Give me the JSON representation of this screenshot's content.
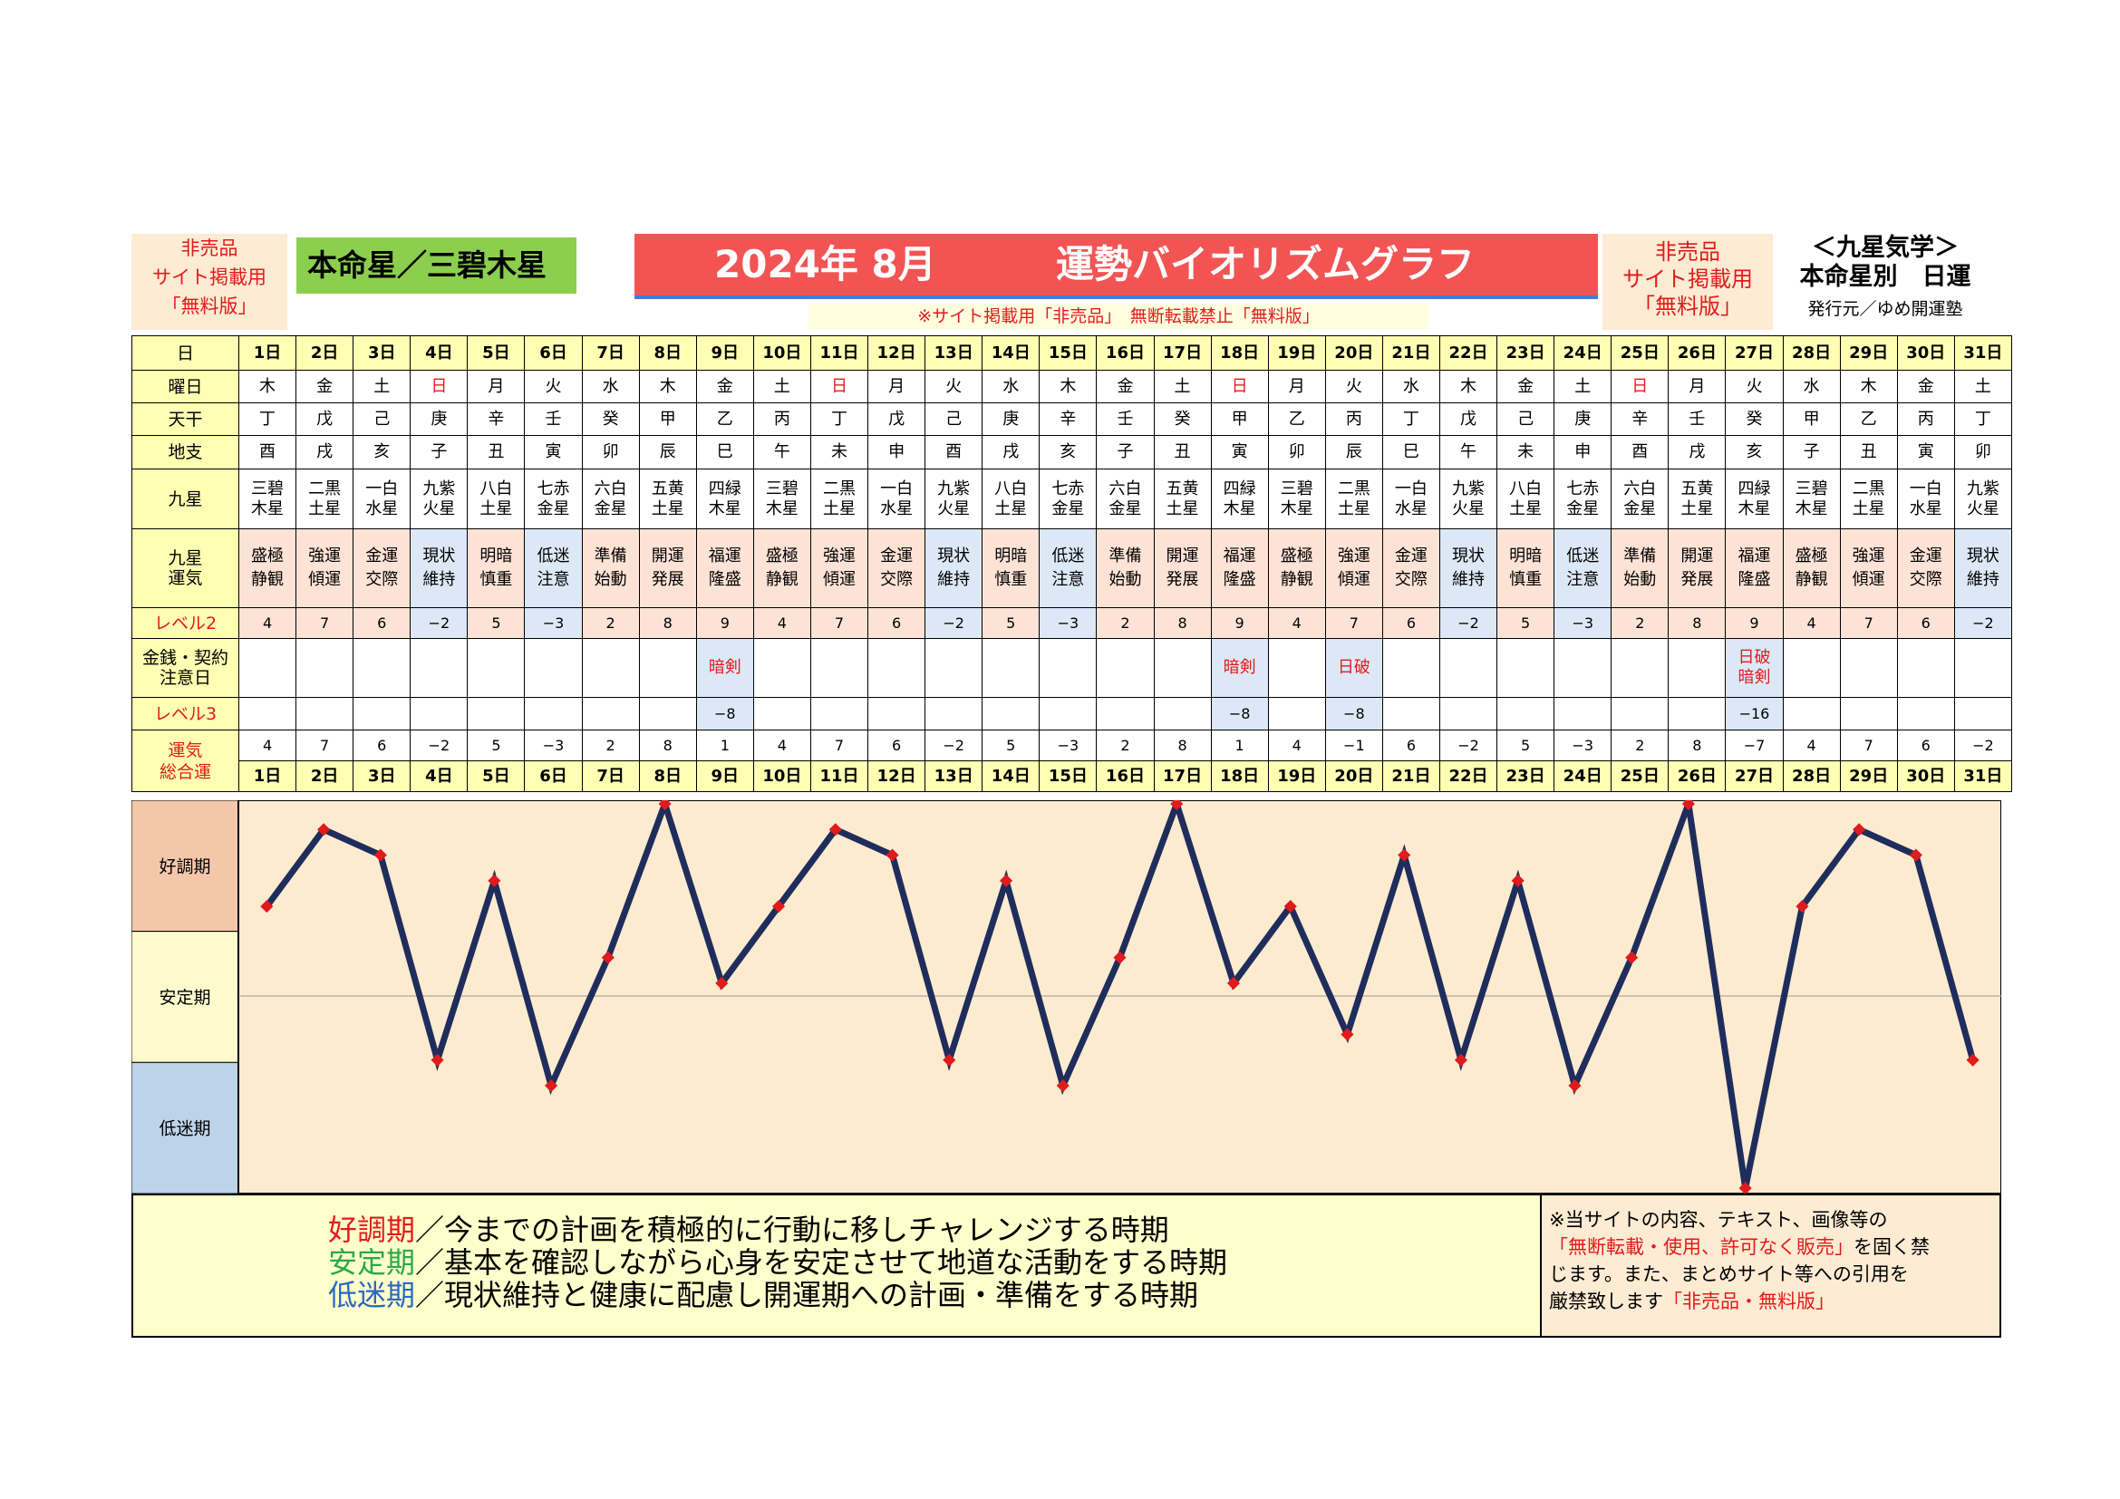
{
  "header": {
    "nonsale_left": [
      "非売品",
      "サイト掲載用",
      "「無料版」"
    ],
    "honmei": "本命星／三碧木星",
    "title_year": "2024年 8月",
    "title_main": "運勢バイオリズムグラフ",
    "notice": "※サイト掲載用「非売品」　無断転載禁止「無料版」",
    "nonsale_right": [
      "非売品",
      "サイト掲載用",
      "「無料版」"
    ],
    "kyusei_title": "＜九星気学＞",
    "kyusei_sub": "本命星別　日運",
    "publisher": "発行元／ゆめ開運塾"
  },
  "row_labels": {
    "day": "日",
    "weekday": "曜日",
    "tenkan": "天干",
    "chishi": "地支",
    "kyusei": "九星",
    "unki": "九星\n運気",
    "level2": "レベル2",
    "kinsen": "金銭・契約\n注意日",
    "level3": "レベル3",
    "total": "運気\n総合運"
  },
  "days": [
    "1日",
    "2日",
    "3日",
    "4日",
    "5日",
    "6日",
    "7日",
    "8日",
    "9日",
    "10日",
    "11日",
    "12日",
    "13日",
    "14日",
    "15日",
    "16日",
    "17日",
    "18日",
    "19日",
    "20日",
    "21日",
    "22日",
    "23日",
    "24日",
    "25日",
    "26日",
    "27日",
    "28日",
    "29日",
    "30日",
    "31日"
  ],
  "weekdays": [
    "木",
    "金",
    "土",
    "日",
    "月",
    "火",
    "水",
    "木",
    "金",
    "土",
    "日",
    "月",
    "火",
    "水",
    "木",
    "金",
    "土",
    "日",
    "月",
    "火",
    "水",
    "木",
    "金",
    "土",
    "日",
    "月",
    "火",
    "水",
    "木",
    "金",
    "土"
  ],
  "tenkan": [
    "丁",
    "戊",
    "己",
    "庚",
    "辛",
    "壬",
    "癸",
    "甲",
    "乙",
    "丙",
    "丁",
    "戊",
    "己",
    "庚",
    "辛",
    "壬",
    "癸",
    "甲",
    "乙",
    "丙",
    "丁",
    "戊",
    "己",
    "庚",
    "辛",
    "壬",
    "癸",
    "甲",
    "乙",
    "丙",
    "丁"
  ],
  "chishi": [
    "酉",
    "戌",
    "亥",
    "子",
    "丑",
    "寅",
    "卯",
    "辰",
    "巳",
    "午",
    "未",
    "申",
    "酉",
    "戌",
    "亥",
    "子",
    "丑",
    "寅",
    "卯",
    "辰",
    "巳",
    "午",
    "未",
    "申",
    "酉",
    "戌",
    "亥",
    "子",
    "丑",
    "寅",
    "卯"
  ],
  "kyusei_stars": [
    [
      "三碧",
      "木星"
    ],
    [
      "二黒",
      "土星"
    ],
    [
      "一白",
      "水星"
    ],
    [
      "九紫",
      "火星"
    ],
    [
      "八白",
      "土星"
    ],
    [
      "七赤",
      "金星"
    ],
    [
      "六白",
      "金星"
    ],
    [
      "五黄",
      "土星"
    ],
    [
      "四緑",
      "木星"
    ],
    [
      "三碧",
      "木星"
    ],
    [
      "二黒",
      "土星"
    ],
    [
      "一白",
      "水星"
    ],
    [
      "九紫",
      "火星"
    ],
    [
      "八白",
      "土星"
    ],
    [
      "七赤",
      "金星"
    ],
    [
      "六白",
      "金星"
    ],
    [
      "五黄",
      "土星"
    ],
    [
      "四緑",
      "木星"
    ],
    [
      "三碧",
      "木星"
    ],
    [
      "二黒",
      "土星"
    ],
    [
      "一白",
      "水星"
    ],
    [
      "九紫",
      "火星"
    ],
    [
      "八白",
      "土星"
    ],
    [
      "七赤",
      "金星"
    ],
    [
      "六白",
      "金星"
    ],
    [
      "五黄",
      "土星"
    ],
    [
      "四緑",
      "木星"
    ],
    [
      "三碧",
      "木星"
    ],
    [
      "二黒",
      "土星"
    ],
    [
      "一白",
      "水星"
    ],
    [
      "九紫",
      "火星"
    ]
  ],
  "unki": [
    [
      "盛極",
      "静観"
    ],
    [
      "強運",
      "傾運"
    ],
    [
      "金運",
      "交際"
    ],
    [
      "現状",
      "維持"
    ],
    [
      "明暗",
      "慎重"
    ],
    [
      "低迷",
      "注意"
    ],
    [
      "準備",
      "始動"
    ],
    [
      "開運",
      "発展"
    ],
    [
      "福運",
      "隆盛"
    ],
    [
      "盛極",
      "静観"
    ],
    [
      "強運",
      "傾運"
    ],
    [
      "金運",
      "交際"
    ],
    [
      "現状",
      "維持"
    ],
    [
      "明暗",
      "慎重"
    ],
    [
      "低迷",
      "注意"
    ],
    [
      "準備",
      "始動"
    ],
    [
      "開運",
      "発展"
    ],
    [
      "福運",
      "隆盛"
    ],
    [
      "盛極",
      "静観"
    ],
    [
      "強運",
      "傾運"
    ],
    [
      "金運",
      "交際"
    ],
    [
      "現状",
      "維持"
    ],
    [
      "明暗",
      "慎重"
    ],
    [
      "低迷",
      "注意"
    ],
    [
      "準備",
      "始動"
    ],
    [
      "開運",
      "発展"
    ],
    [
      "福運",
      "隆盛"
    ],
    [
      "盛極",
      "静観"
    ],
    [
      "強運",
      "傾運"
    ],
    [
      "金運",
      "交際"
    ],
    [
      "現状",
      "維持"
    ]
  ],
  "level2": [
    "4",
    "7",
    "6",
    "−2",
    "5",
    "−3",
    "2",
    "8",
    "9",
    "4",
    "7",
    "6",
    "−2",
    "5",
    "−3",
    "2",
    "8",
    "9",
    "4",
    "7",
    "6",
    "−2",
    "5",
    "−3",
    "2",
    "8",
    "9",
    "4",
    "7",
    "6",
    "−2"
  ],
  "kinsen": [
    [],
    [],
    [],
    [],
    [],
    [],
    [],
    [],
    [
      "暗剣"
    ],
    [],
    [],
    [],
    [],
    [],
    [],
    [],
    [],
    [
      "暗剣"
    ],
    [],
    [
      "日破"
    ],
    [],
    [],
    [],
    [],
    [],
    [],
    [
      "日破",
      "暗剣"
    ],
    [],
    [],
    [],
    []
  ],
  "level3": [
    "",
    "",
    "",
    "",
    "",
    "",
    "",
    "",
    "−8",
    "",
    "",
    "",
    "",
    "",
    "",
    "",
    "",
    "−8",
    "",
    "−8",
    "",
    "",
    "",
    "",
    "",
    "",
    "−16",
    "",
    "",
    "",
    ""
  ],
  "total": [
    "4",
    "7",
    "6",
    "−2",
    "5",
    "−3",
    "2",
    "8",
    "1",
    "4",
    "7",
    "6",
    "−2",
    "5",
    "−3",
    "2",
    "8",
    "1",
    "4",
    "−1",
    "6",
    "−2",
    "5",
    "−3",
    "2",
    "8",
    "−7",
    "4",
    "7",
    "6",
    "−2"
  ],
  "bands": {
    "good": "好調期",
    "stable": "安定期",
    "low": "低迷期"
  },
  "legend": {
    "good_label": "好調期",
    "good_text": "／今までの計画を積極的に行動に移しチャレンジする時期",
    "stable_label": "安定期",
    "stable_text": "／基本を確認しながら心身を安定させて地道な活動をする時期",
    "low_label": "低迷期",
    "low_text": "／現状維持と健康に配慮し開運期への計画・準備をする時期"
  },
  "copyright": {
    "line1": "※当サイトの内容、テキスト、画像等の",
    "line2_red": "「無断転載・使用、許可なく販売」",
    "line2_rest": "を固く禁",
    "line3": "じます。また、まとめサイト等への引用を",
    "line4": "厳禁致します",
    "line4_red": "「非売品・無料版」"
  },
  "colors": {
    "line": "#1f2d5c",
    "marker": "#e01b1b",
    "red": "#e21b1b",
    "good_band": "#f4c7ab",
    "stable_band": "#fffacd",
    "low_band": "#bdd3ea",
    "plot_bg": "#fdebd0"
  },
  "chart_data": {
    "type": "line",
    "title": "運勢バイオリズムグラフ",
    "x": [
      "1日",
      "2日",
      "3日",
      "4日",
      "5日",
      "6日",
      "7日",
      "8日",
      "9日",
      "10日",
      "11日",
      "12日",
      "13日",
      "14日",
      "15日",
      "16日",
      "17日",
      "18日",
      "19日",
      "20日",
      "21日",
      "22日",
      "23日",
      "24日",
      "25日",
      "26日",
      "27日",
      "28日",
      "29日",
      "30日",
      "31日"
    ],
    "series": [
      {
        "name": "",
        "values": [
          4,
          7,
          6,
          -2,
          5,
          -3,
          2,
          8,
          1,
          4,
          7,
          6,
          -2,
          5,
          -3,
          2,
          8,
          1,
          4,
          -1,
          6,
          -2,
          5,
          -3,
          2,
          8,
          -7,
          4,
          7,
          6,
          -2
        ]
      }
    ],
    "ylim": [
      -7,
      8
    ],
    "grid": false,
    "bands": [
      "好調期",
      "安定期",
      "低迷期"
    ]
  }
}
